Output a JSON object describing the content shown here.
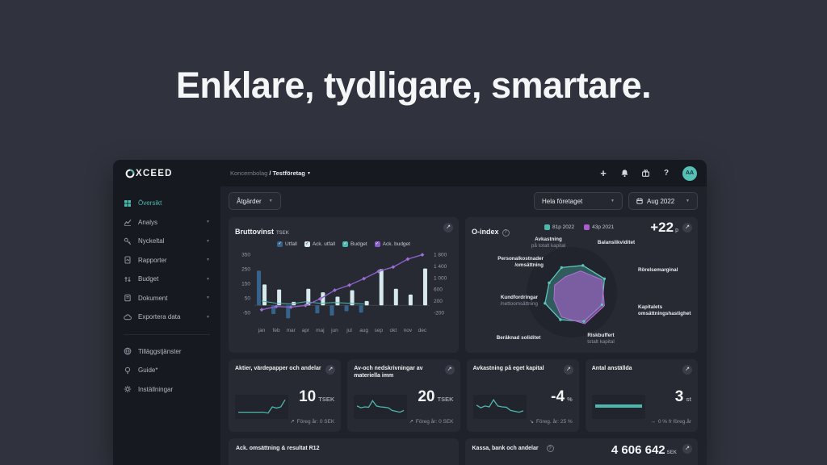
{
  "hero": {
    "title": "Enklare, tydligare, smartare."
  },
  "colors": {
    "teal": "#4cb8ad",
    "dark_blue": "#35638c",
    "pale": "#d7e9ec",
    "purple": "#8a5fc8",
    "radar_purple": "#a85fcc",
    "page_bg": "#30333d",
    "card_bg": "#272a33"
  },
  "topbar": {
    "breadcrumb": {
      "parent": "Koncernbolag",
      "separator": "/",
      "current": "Testföretag"
    },
    "avatar_initials": "AA"
  },
  "sidebar": {
    "logo": "XCEED",
    "items": [
      {
        "label": "Översikt",
        "icon": "grid-icon",
        "active": true,
        "chevron": false
      },
      {
        "label": "Analys",
        "icon": "analytics-icon",
        "active": false,
        "chevron": true
      },
      {
        "label": "Nyckeltal",
        "icon": "key-icon",
        "active": false,
        "chevron": true
      },
      {
        "label": "Rapporter",
        "icon": "report-icon",
        "active": false,
        "chevron": true
      },
      {
        "label": "Budget",
        "icon": "budget-icon",
        "active": false,
        "chevron": true
      },
      {
        "label": "Dokument",
        "icon": "document-icon",
        "active": false,
        "chevron": true
      },
      {
        "label": "Exportera data",
        "icon": "cloud-icon",
        "active": false,
        "chevron": true
      }
    ],
    "secondary": [
      {
        "label": "Tilläggstjänster",
        "icon": "services-icon"
      },
      {
        "label": "Guide*",
        "icon": "bulb-icon"
      },
      {
        "label": "Inställningar",
        "icon": "gear-icon"
      }
    ]
  },
  "filters": {
    "actions_label": "Åtgärder",
    "company_label": "Hela företaget",
    "period_label": "Aug 2022"
  },
  "gross_profit": {
    "title": "Bruttovinst",
    "unit": "TSEK",
    "legend": [
      {
        "label": "Utfall",
        "color": "#35638c",
        "check_color": "#ffffff"
      },
      {
        "label": "Ack. utfall",
        "color": "#d7e9ec",
        "check_color": "#272a33"
      },
      {
        "label": "Budget",
        "color": "#4cb8ad",
        "check_color": "#ffffff"
      },
      {
        "label": "Ack. budget",
        "color": "#8a5fc8",
        "check_color": "#ffffff"
      }
    ],
    "chart_data": {
      "type": "bar",
      "categories": [
        "jan",
        "feb",
        "mar",
        "apr",
        "maj",
        "jun",
        "jul",
        "aug",
        "sep",
        "okt",
        "nov",
        "dec"
      ],
      "series": [
        {
          "name": "Utfall",
          "type": "bar",
          "color": "#35638c",
          "values": [
            240,
            -60,
            -90,
            null,
            -55,
            -70,
            -40,
            -50,
            null,
            null,
            null,
            null
          ]
        },
        {
          "name": "Ack. utfall",
          "type": "bar",
          "color": "#d7e9ec",
          "values": [
            145,
            110,
            25,
            115,
            90,
            60,
            105,
            30,
            250,
            115,
            75,
            255
          ]
        },
        {
          "name": "Budget",
          "type": "line",
          "color": "#4cb8ad",
          "values": [
            30,
            15,
            10,
            25,
            15,
            20,
            15,
            10,
            null,
            null,
            null,
            null
          ]
        },
        {
          "name": "Ack. budget",
          "type": "line",
          "color": "#8a5fc8",
          "marker": "diamond",
          "values": [
            -30,
            -8,
            -12,
            0,
            45,
            105,
            140,
            185,
            235,
            265,
            320,
            350
          ]
        }
      ],
      "left_axis": {
        "ticks": [
          350,
          250,
          150,
          50,
          -50
        ],
        "range": [
          -110,
          370
        ]
      },
      "right_axis": {
        "ticks": [
          1800,
          1400,
          1000,
          600,
          200,
          -200
        ],
        "tick_labels": [
          "1 800",
          "1 400",
          "1 000",
          "600",
          "200",
          "-200"
        ],
        "range": [
          -500,
          1900
        ]
      }
    }
  },
  "o_index": {
    "title": "O-index",
    "help_glyph": "?",
    "delta_value": "+22",
    "delta_unit": "p",
    "legend": [
      {
        "label": "81p 2022",
        "color": "#4cb8ad"
      },
      {
        "label": "43p 2021",
        "color": "#a85fcc"
      }
    ],
    "chart_data": {
      "type": "radar",
      "axes": [
        {
          "label": "Avkastning",
          "sublabel": "på totalt kapital",
          "sublabel_bold": false
        },
        {
          "label": "Balanslikviditet",
          "sublabel": "",
          "sublabel_bold": false
        },
        {
          "label": "Rörelsemarginal",
          "sublabel": "",
          "sublabel_bold": false
        },
        {
          "label": "Kapitalets",
          "sublabel": "omsättningshastighet",
          "sublabel_bold": true
        },
        {
          "label": "Riskbuffert",
          "sublabel": "totalt kapital",
          "sublabel_bold": false
        },
        {
          "label": "Beräknad soliditet",
          "sublabel": "",
          "sublabel_bold": false
        },
        {
          "label": "Kundfordringar",
          "sublabel": "/nettoomsättning",
          "sublabel_bold": false
        },
        {
          "label": "Personalkostnader",
          "sublabel": "/omsättning",
          "sublabel_bold": true
        }
      ],
      "series": [
        {
          "name": "2022",
          "color": "#4cb8ad",
          "values": [
            0.72,
            0.78,
            0.95,
            0.88,
            0.85,
            0.8,
            0.78,
            0.66
          ]
        },
        {
          "name": "2021",
          "color": "#a85fcc",
          "values": [
            0.45,
            0.62,
            0.88,
            0.95,
            0.92,
            0.72,
            0.52,
            0.5
          ]
        }
      ]
    }
  },
  "kpis": [
    {
      "title": "Aktier, värdepapper och andelar",
      "value": "10",
      "unit": "TSEK",
      "trend": "up",
      "note": "Föreg år: 0 SEK",
      "spark_type": "line",
      "spark": [
        2,
        2,
        2,
        2,
        2,
        2,
        2,
        1.5,
        5,
        4.3,
        5,
        9
      ]
    },
    {
      "title": "Av-och nedskrivningar av materiella imm",
      "value": "20",
      "unit": "TSEK",
      "trend": "up",
      "note": "Föreg år: 0 SEK",
      "spark_type": "line",
      "spark": [
        5.5,
        4.5,
        5,
        4.8,
        8.5,
        5.5,
        5,
        4.8,
        4.5,
        3,
        2.5,
        2,
        3
      ]
    },
    {
      "title": "Avkastning på eget kapital",
      "value": "-4",
      "unit": "%",
      "trend": "down",
      "note": "Föreg. år: 25 %",
      "spark_type": "line",
      "spark": [
        6,
        4.5,
        5.5,
        5,
        9,
        5.5,
        5,
        4.8,
        3,
        2.5,
        2,
        2.8
      ]
    },
    {
      "title": "Antal anställda",
      "value": "3",
      "unit": "st",
      "trend": "flat",
      "note": "0 % fr föreg.år",
      "spark_type": "thick",
      "spark": [
        5,
        5,
        5,
        5,
        5
      ]
    }
  ],
  "trend_arrows": {
    "up": "↗",
    "down": "↘",
    "flat": "→"
  },
  "bottom_cards": [
    {
      "title": "Ack. omsättning & resultat R12"
    },
    {
      "title": "Kassa, bank och andelar",
      "value": "4 606 642",
      "unit": "SEK"
    }
  ]
}
